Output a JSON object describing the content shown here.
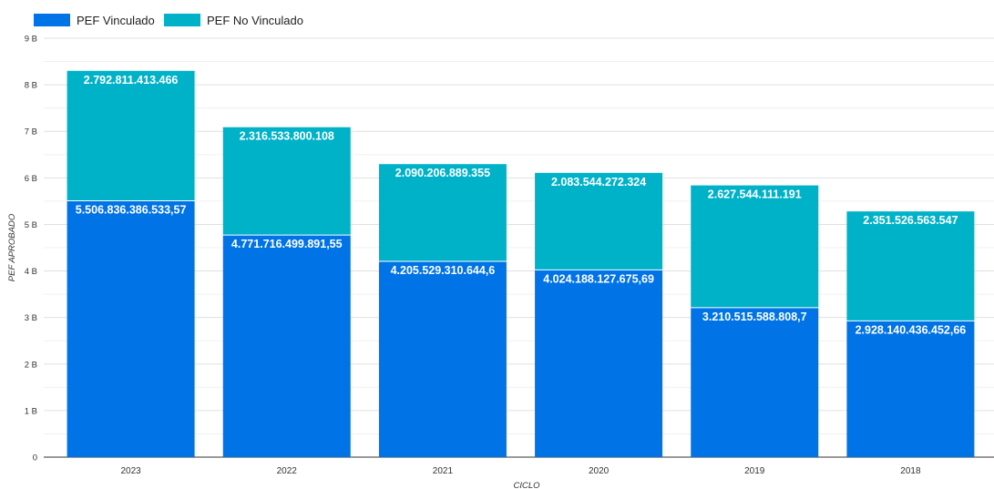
{
  "chart_data": {
    "type": "bar",
    "stacked": true,
    "categories": [
      "2023",
      "2022",
      "2021",
      "2020",
      "2019",
      "2018"
    ],
    "series": [
      {
        "name": "PEF Vinculado",
        "color": "#0073E6",
        "values": [
          5506836386533.57,
          4771716499891.55,
          4205529310644.6,
          4024188127675.69,
          3210515588808.7,
          2928140436452.66
        ],
        "labels": [
          "5.506.836.386.533,57",
          "4.771.716.499.891,55",
          "4.205.529.310.644,6",
          "4.024.188.127.675,69",
          "3.210.515.588.808,7",
          "2.928.140.436.452,66"
        ]
      },
      {
        "name": "PEF No Vinculado",
        "color": "#00B2C8",
        "values": [
          2792811413466,
          2316533800108,
          2090206889355,
          2083544272324,
          2627544111191,
          2351526563547
        ],
        "labels": [
          "2.792.811.413.466",
          "2.316.533.800.108",
          "2.090.206.889.355",
          "2.083.544.272.324",
          "2.627.544.111.191",
          "2.351.526.563.547"
        ]
      }
    ],
    "xlabel": "CICLO",
    "ylabel": "PEF APROBADO",
    "ylim": [
      0,
      9000000000000
    ],
    "yticks": [
      0,
      1000000000000,
      2000000000000,
      3000000000000,
      4000000000000,
      5000000000000,
      6000000000000,
      7000000000000,
      8000000000000,
      9000000000000
    ],
    "ytick_labels": [
      "0",
      "1 B",
      "2 B",
      "3 B",
      "4 B",
      "5 B",
      "6 B",
      "7 B",
      "8 B",
      "9 B"
    ],
    "legend_position": "top-left",
    "grid": true
  }
}
